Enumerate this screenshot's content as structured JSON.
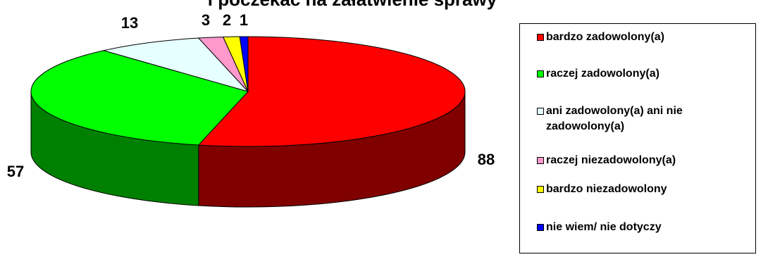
{
  "chart_data": {
    "type": "pie",
    "title": "i poczekać na załatwienie sprawy",
    "categories": [
      "bardzo zadowolony(a)",
      "raczej zadowolony(a)",
      "ani zadowolony(a) ani nie zadowolony(a)",
      "raczej niezadowolony(a)",
      "bardzo niezadowolony",
      "nie wiem/ nie dotyczy"
    ],
    "values": [
      88,
      57,
      13,
      3,
      2,
      1
    ],
    "colors": [
      "#ff0000",
      "#00ff00",
      "#e6ffff",
      "#ff99cc",
      "#ffff00",
      "#0000ff"
    ],
    "side_colors": [
      "#800000",
      "#008000",
      "#8ab0b0",
      "#a06080",
      "#999900",
      "#000080"
    ],
    "legend_placement": "right",
    "three_d": true
  }
}
